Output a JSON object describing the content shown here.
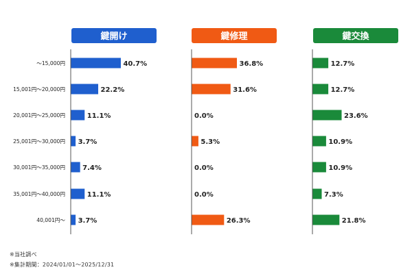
{
  "chart_data": {
    "type": "bar",
    "orientation": "horizontal",
    "layout": "small-multiples",
    "categories": [
      "～15,000円",
      "15,001円～20,000円",
      "20,001円～25,000円",
      "25,001円～30,000円",
      "30,001円～35,000円",
      "35,001円～40,000円",
      "40,001円～"
    ],
    "series": [
      {
        "name": "鍵開け",
        "color": "#1f5fce",
        "values": [
          40.7,
          22.2,
          11.1,
          3.7,
          7.4,
          11.1,
          3.7
        ],
        "labels": [
          "40.7%",
          "22.2%",
          "11.1%",
          "3.7%",
          "7.4%",
          "11.1%",
          "3.7%"
        ]
      },
      {
        "name": "鍵修理",
        "color": "#f05a14",
        "values": [
          36.8,
          31.6,
          0.0,
          5.3,
          0.0,
          0.0,
          26.3
        ],
        "labels": [
          "36.8%",
          "31.6%",
          "0.0%",
          "5.3%",
          "0.0%",
          "0.0%",
          "26.3%"
        ]
      },
      {
        "name": "鍵交換",
        "color": "#1a8a3a",
        "values": [
          12.7,
          12.7,
          23.6,
          10.9,
          10.9,
          7.3,
          21.8
        ],
        "labels": [
          "12.7%",
          "12.7%",
          "23.6%",
          "10.9%",
          "10.9%",
          "7.3%",
          "21.8%"
        ]
      }
    ],
    "value_unit": "%",
    "grid": false
  },
  "notes": [
    "※当社調べ",
    "※集計期間：2024/01/01～2025/12/31"
  ]
}
